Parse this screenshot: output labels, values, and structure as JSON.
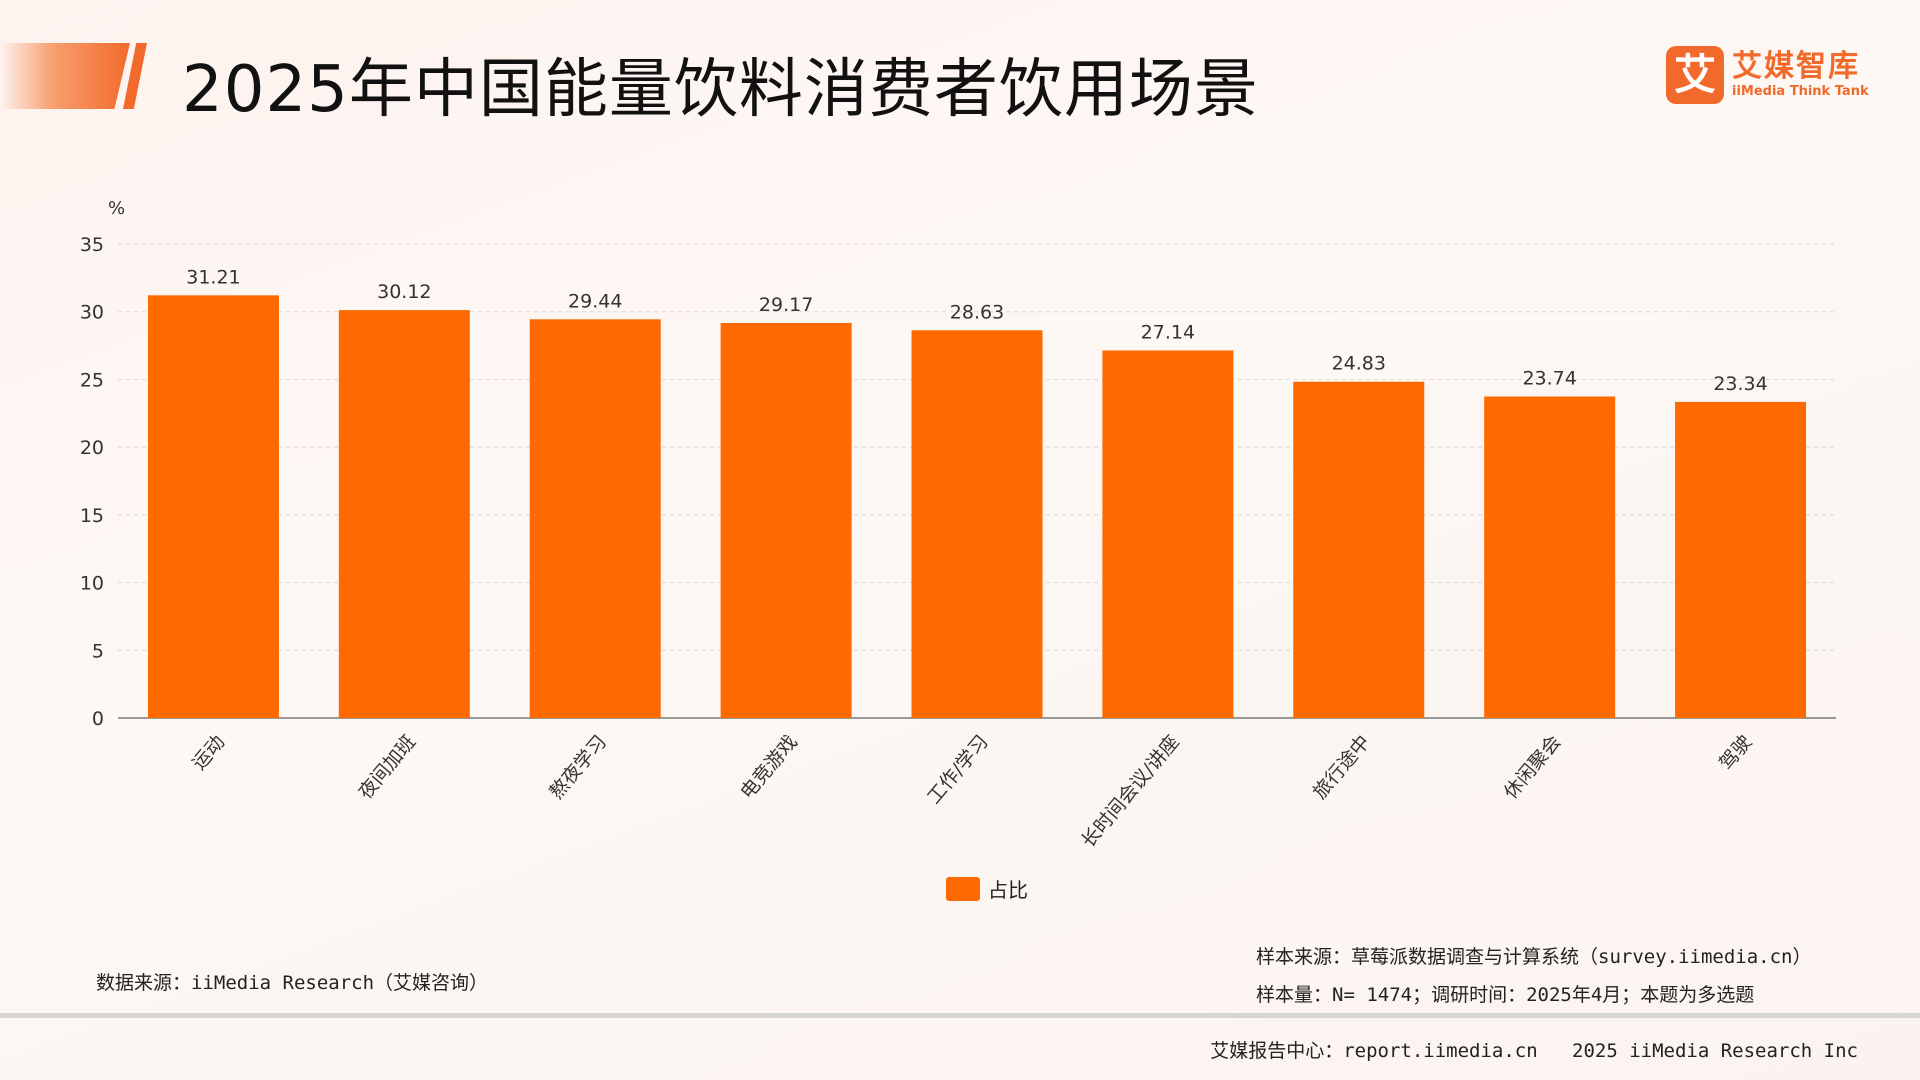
{
  "header": {
    "title": "2025年中国能量饮料消费者饮用场景"
  },
  "logo": {
    "mark": "艾",
    "name_cn": "艾媒智库",
    "name_en": "iiMedia Think Tank"
  },
  "colors": {
    "accent": "#f26a2b",
    "bar": "#ff6a00"
  },
  "chart_data": {
    "type": "bar",
    "title": "",
    "xlabel": "",
    "ylabel": "%",
    "ylim": [
      0,
      35
    ],
    "yticks": [
      0,
      5,
      10,
      15,
      20,
      25,
      30,
      35
    ],
    "grid": true,
    "legend_position": "bottom",
    "categories": [
      "运动",
      "夜间加班",
      "熬夜学习",
      "电竞游戏",
      "工作/学习",
      "长时间会议/讲座",
      "旅行途中",
      "休闲聚会",
      "驾驶"
    ],
    "series": [
      {
        "name": "占比",
        "values": [
          31.21,
          30.12,
          29.44,
          29.17,
          28.63,
          27.14,
          24.83,
          23.74,
          23.34
        ]
      }
    ]
  },
  "footer": {
    "data_source": "数据来源：iiMedia Research（艾媒咨询）",
    "sample_source": "样本来源：草莓派数据调查与计算系统（survey.iimedia.cn）",
    "sample_size": "样本量：N= 1474；调研时间：2025年4月；本题为多选题",
    "report_center": "艾媒报告中心：report.iimedia.cn",
    "copyright": "2025 iiMedia Research Inc"
  }
}
